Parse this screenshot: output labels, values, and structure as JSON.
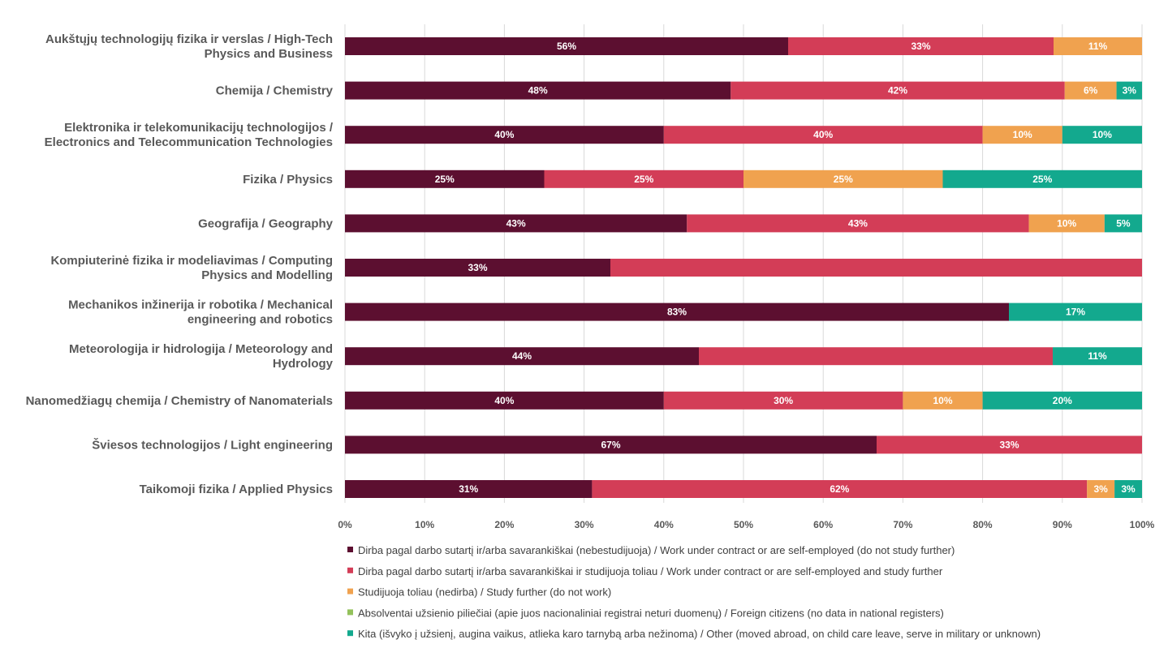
{
  "chart_data": {
    "type": "bar",
    "orientation": "horizontal",
    "stacked": true,
    "categories": [
      [
        "Aukštųjų technologijų fizika ir verslas / High-Tech",
        "Physics and Business"
      ],
      [
        "Chemija / Chemistry"
      ],
      [
        "Elektronika ir telekomunikacijų technologijos /",
        "Electronics and Telecommunication Technologies"
      ],
      [
        "Fizika / Physics"
      ],
      [
        "Geografija / Geography"
      ],
      [
        "Kompiuterinė fizika ir modeliavimas / Computing",
        "Physics and Modelling"
      ],
      [
        "Mechanikos inžinerija ir robotika / Mechanical",
        "engineering and robotics"
      ],
      [
        "Meteorologija ir hidrologija / Meteorology and",
        "Hydrology"
      ],
      [
        "Nanomedžiagų chemija / Chemistry of Nanomaterials"
      ],
      [
        "Šviesos technologijos / Light engineering"
      ],
      [
        "Taikomoji fizika / Applied Physics"
      ]
    ],
    "series": [
      {
        "name": "Dirba pagal darbo sutartį ir/arba savarankiškai (nebestudijuoja) / Work under contract or are self-employed (do not study further)",
        "color": "#5c0f30",
        "values": [
          55.6,
          48.4,
          40,
          25,
          42.9,
          33.3,
          83.3,
          44.4,
          40,
          66.7,
          31
        ],
        "labels": [
          "56%",
          "48%",
          "40%",
          "25%",
          "43%",
          "33%",
          "83%",
          "44%",
          "40%",
          "67%",
          "31%"
        ]
      },
      {
        "name": "Dirba pagal darbo sutartį ir/arba savarankiškai  ir studijuoja toliau / Work under contract or are self-employed and study further",
        "color": "#d33d57",
        "values": [
          33.3,
          41.9,
          40,
          25,
          42.9,
          66.7,
          0,
          44.4,
          30,
          33.3,
          62.1
        ],
        "labels": [
          "33%",
          "42%",
          "40%",
          "25%",
          "43%",
          "",
          "",
          "",
          "30%",
          "33%",
          "62%"
        ]
      },
      {
        "name": "Studijuoja toliau (nedirba) / Study further (do not work)",
        "color": "#f0a24f",
        "values": [
          11.1,
          6.5,
          10,
          25,
          9.5,
          0,
          0,
          0,
          10,
          0,
          3.45
        ],
        "labels": [
          "11%",
          "6%",
          "10%",
          "25%",
          "10%",
          "",
          "",
          "",
          "10%",
          "",
          "3%"
        ]
      },
      {
        "name": "Absolventai užsienio piliečiai (apie juos nacionaliniai registrai neturi duomenų) / Foreign citizens (no data in national registers)",
        "color": "#93c15b",
        "values": [
          0,
          0,
          0,
          0,
          0,
          0,
          0,
          0,
          0,
          0,
          0
        ],
        "labels": [
          "",
          "",
          "",
          "",
          "",
          "",
          "",
          "",
          "",
          "",
          ""
        ]
      },
      {
        "name": "Kita (išvyko į užsienį, augina vaikus, atlieka karo tarnybą arba nežinoma) / Other (moved abroad, on child care leave, serve in military or unknown)",
        "color": "#13a98e",
        "values": [
          0,
          3.2,
          10,
          25,
          4.7,
          0,
          16.7,
          11.2,
          20,
          0,
          3.45
        ],
        "labels": [
          "",
          "3%",
          "10%",
          "25%",
          "5%",
          "",
          "17%",
          "11%",
          "20%",
          "",
          "3%"
        ]
      }
    ],
    "xlim": [
      0,
      100
    ],
    "xticks": [
      "0%",
      "10%",
      "20%",
      "30%",
      "40%",
      "50%",
      "60%",
      "70%",
      "80%",
      "90%",
      "100%"
    ],
    "grid": "vertical",
    "legend_position": "bottom"
  }
}
